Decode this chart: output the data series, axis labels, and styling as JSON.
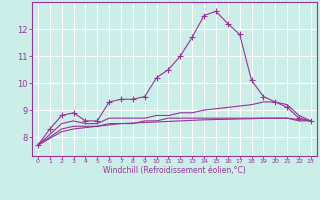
{
  "xlabel": "Windchill (Refroidissement éolien,°C)",
  "ylabel": "",
  "bg_color": "#cceee8",
  "grid_color": "#ffffff",
  "line_color": "#993399",
  "x_ticks": [
    0,
    1,
    2,
    3,
    4,
    5,
    6,
    7,
    8,
    9,
    10,
    11,
    12,
    13,
    14,
    15,
    16,
    17,
    18,
    19,
    20,
    21,
    22,
    23
  ],
  "y_ticks": [
    8,
    9,
    10,
    11,
    12
  ],
  "ylim": [
    7.3,
    13.0
  ],
  "xlim": [
    -0.5,
    23.5
  ],
  "series": [
    [
      7.7,
      8.3,
      8.8,
      8.9,
      8.6,
      8.6,
      9.3,
      9.4,
      9.4,
      9.5,
      10.2,
      10.5,
      11.0,
      11.7,
      12.5,
      12.65,
      12.2,
      11.8,
      10.1,
      9.5,
      9.3,
      9.1,
      8.7,
      8.6
    ],
    [
      7.7,
      8.1,
      8.5,
      8.6,
      8.5,
      8.5,
      8.7,
      8.7,
      8.7,
      8.7,
      8.8,
      8.8,
      8.9,
      8.9,
      9.0,
      9.05,
      9.1,
      9.15,
      9.2,
      9.3,
      9.3,
      9.2,
      8.8,
      8.6
    ],
    [
      7.7,
      8.0,
      8.3,
      8.4,
      8.4,
      8.4,
      8.5,
      8.5,
      8.5,
      8.6,
      8.6,
      8.7,
      8.7,
      8.7,
      8.7,
      8.7,
      8.7,
      8.7,
      8.7,
      8.7,
      8.7,
      8.7,
      8.6,
      8.6
    ],
    [
      7.7,
      7.95,
      8.2,
      8.3,
      8.35,
      8.4,
      8.45,
      8.5,
      8.52,
      8.54,
      8.56,
      8.58,
      8.6,
      8.62,
      8.64,
      8.65,
      8.66,
      8.67,
      8.68,
      8.7,
      8.7,
      8.7,
      8.65,
      8.6
    ]
  ],
  "has_markers": [
    true,
    false,
    false,
    false
  ],
  "marker": "+",
  "markersize": 4,
  "linewidths": [
    0.8,
    0.8,
    0.8,
    0.8
  ]
}
